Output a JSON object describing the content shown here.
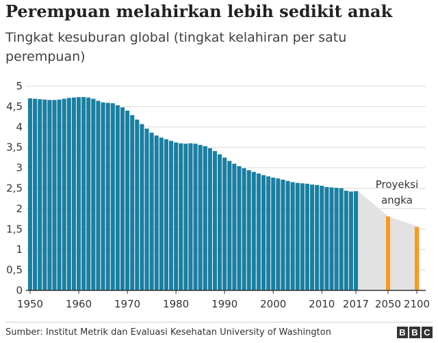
{
  "title": "Perempuan melahirkan lebih sedikit anak",
  "subtitle": "Tingkat kesuburan global (tingkat kelahiran per satu perempuan)",
  "source": "Sumber: Institut Metrik dan Evaluasi Kesehatan University of Washington",
  "logo": [
    "B",
    "B",
    "C"
  ],
  "colors": {
    "historical": "#1a7fa1",
    "projection": "#fa9a1b",
    "projection_band": "#e2e2e2",
    "grid": "#d8d8d8"
  },
  "chart_data": {
    "type": "bar",
    "title": "Perempuan melahirkan lebih sedikit anak",
    "subtitle": "Tingkat kesuburan global (tingkat kelahiran per satu perempuan)",
    "ylim": [
      0,
      5
    ],
    "y_ticks": [
      "0",
      "0,5",
      "1",
      "1,5",
      "2",
      "2,5",
      "3",
      "3,5",
      "4",
      "4,5",
      "5"
    ],
    "x_ticks": [
      "1950",
      "1960",
      "1970",
      "1980",
      "1990",
      "2000",
      "2010",
      "2017",
      "2050",
      "2100"
    ],
    "grid": true,
    "series": [
      {
        "name": "",
        "color": "#1a7fa1",
        "x": [
          1950,
          1951,
          1952,
          1953,
          1954,
          1955,
          1956,
          1957,
          1958,
          1959,
          1960,
          1961,
          1962,
          1963,
          1964,
          1965,
          1966,
          1967,
          1968,
          1969,
          1970,
          1971,
          1972,
          1973,
          1974,
          1975,
          1976,
          1977,
          1978,
          1979,
          1980,
          1981,
          1982,
          1983,
          1984,
          1985,
          1986,
          1987,
          1988,
          1989,
          1990,
          1991,
          1992,
          1993,
          1994,
          1995,
          1996,
          1997,
          1998,
          1999,
          2000,
          2001,
          2002,
          2003,
          2004,
          2005,
          2006,
          2007,
          2008,
          2009,
          2010,
          2011,
          2012,
          2013,
          2014,
          2015,
          2016,
          2017
        ],
        "values": [
          4.7,
          4.69,
          4.68,
          4.67,
          4.66,
          4.66,
          4.67,
          4.69,
          4.71,
          4.72,
          4.73,
          4.73,
          4.72,
          4.69,
          4.64,
          4.6,
          4.59,
          4.58,
          4.53,
          4.48,
          4.4,
          4.29,
          4.18,
          4.07,
          3.96,
          3.86,
          3.79,
          3.74,
          3.7,
          3.66,
          3.62,
          3.6,
          3.59,
          3.6,
          3.59,
          3.56,
          3.53,
          3.48,
          3.41,
          3.33,
          3.25,
          3.17,
          3.1,
          3.04,
          2.99,
          2.94,
          2.9,
          2.86,
          2.82,
          2.79,
          2.76,
          2.74,
          2.71,
          2.68,
          2.65,
          2.63,
          2.62,
          2.61,
          2.59,
          2.58,
          2.56,
          2.53,
          2.52,
          2.51,
          2.5,
          2.44,
          2.42,
          2.43
        ]
      },
      {
        "name": "Proyeksi angka",
        "color": "#fa9a1b",
        "x": [
          2050,
          2100
        ],
        "values": [
          1.81,
          1.55
        ]
      }
    ],
    "annotations": [
      {
        "text": [
          "Proyeksi",
          "angka"
        ]
      }
    ]
  }
}
